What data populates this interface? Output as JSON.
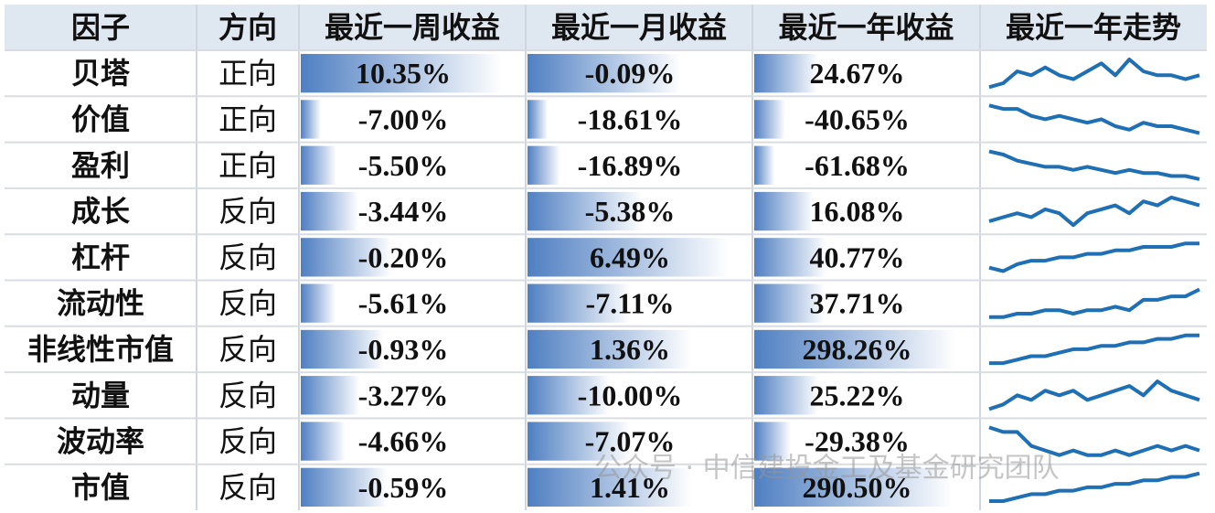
{
  "header": [
    "因子",
    "方向",
    "最近一周收益",
    "最近一月收益",
    "最近一年收益",
    "最近一年走势"
  ],
  "rows": [
    {
      "factor": "贝塔",
      "direction": "正向",
      "week": "10.35%",
      "month": "-0.09%",
      "year": "24.67%",
      "trend": [
        3,
        4,
        7,
        6,
        8,
        6,
        5,
        7,
        9,
        6,
        10,
        7,
        6,
        6,
        5,
        6
      ]
    },
    {
      "factor": "价值",
      "direction": "正向",
      "week": "-7.00%",
      "month": "-18.61%",
      "year": "-40.65%",
      "trend": [
        9,
        8,
        8,
        6,
        5,
        6,
        5,
        4,
        5,
        3,
        2,
        4,
        3,
        3,
        2,
        1
      ]
    },
    {
      "factor": "盈利",
      "direction": "正向",
      "week": "-5.50%",
      "month": "-16.89%",
      "year": "-61.68%",
      "trend": [
        9,
        8,
        6,
        5,
        4,
        4,
        3,
        4,
        3,
        2,
        3,
        2,
        2,
        1,
        1,
        0
      ]
    },
    {
      "factor": "成长",
      "direction": "反向",
      "week": "-3.44%",
      "month": "-5.38%",
      "year": "16.08%",
      "trend": [
        3,
        4,
        5,
        4,
        6,
        5,
        2,
        5,
        6,
        7,
        5,
        8,
        7,
        9,
        8,
        7
      ]
    },
    {
      "factor": "杠杆",
      "direction": "反向",
      "week": "-0.20%",
      "month": "6.49%",
      "year": "40.77%",
      "trend": [
        2,
        1,
        3,
        4,
        4,
        5,
        5,
        6,
        6,
        7,
        7,
        8,
        8,
        8,
        9,
        9
      ]
    },
    {
      "factor": "流动性",
      "direction": "反向",
      "week": "-5.61%",
      "month": "-7.11%",
      "year": "37.71%",
      "trend": [
        2,
        2,
        3,
        3,
        4,
        4,
        3,
        4,
        4,
        5,
        4,
        7,
        7,
        8,
        8,
        10
      ]
    },
    {
      "factor": "非线性市值",
      "direction": "反向",
      "week": "-0.93%",
      "month": "1.36%",
      "year": "298.26%",
      "trend": [
        1,
        1,
        2,
        3,
        3,
        4,
        5,
        5,
        6,
        6,
        7,
        7,
        8,
        8,
        9,
        9
      ]
    },
    {
      "factor": "动量",
      "direction": "反向",
      "week": "-3.27%",
      "month": "-10.00%",
      "year": "25.22%",
      "trend": [
        3,
        4,
        6,
        5,
        7,
        6,
        7,
        5,
        6,
        7,
        8,
        6,
        9,
        7,
        6,
        5
      ]
    },
    {
      "factor": "波动率",
      "direction": "反向",
      "week": "-4.66%",
      "month": "-7.07%",
      "year": "-29.38%",
      "trend": [
        9,
        8,
        8,
        5,
        4,
        3,
        4,
        3,
        3,
        4,
        3,
        4,
        5,
        4,
        5,
        4
      ]
    },
    {
      "factor": "市值",
      "direction": "反向",
      "week": "-0.59%",
      "month": "1.41%",
      "year": "290.50%",
      "trend": [
        1,
        1,
        2,
        3,
        3,
        4,
        4,
        5,
        5,
        6,
        6,
        7,
        7,
        8,
        8,
        9
      ]
    }
  ],
  "watermark": "公众号 · 中信建投金工及基金研究团队"
}
